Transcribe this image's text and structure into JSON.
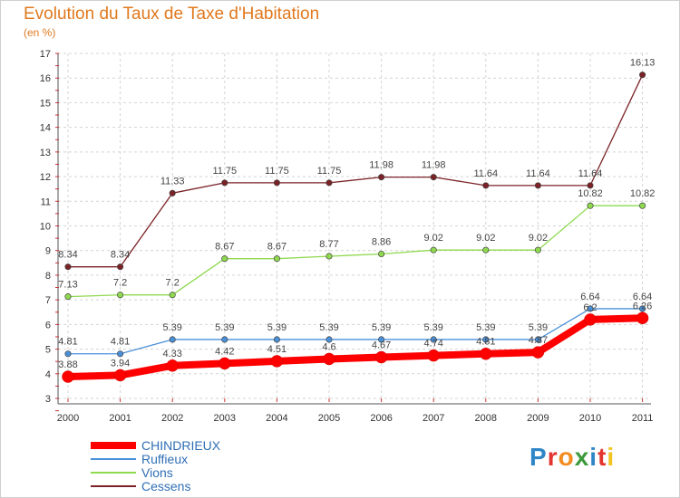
{
  "title": "Evolution du Taux de Taxe d'Habitation",
  "subtitle": "(en %)",
  "logo": {
    "letters": [
      "P",
      "r",
      "o",
      "x",
      "i",
      "t",
      "i"
    ],
    "colors": [
      "#2f86c7",
      "#e3342f",
      "#f28c1e",
      "#3c9a3c",
      "#2f86c7",
      "#e3342f",
      "#f2c21e"
    ]
  },
  "chart_data": {
    "type": "line",
    "x": [
      "2000",
      "2001",
      "2002",
      "2003",
      "2004",
      "2005",
      "2006",
      "2007",
      "2008",
      "2009",
      "2010",
      "2011"
    ],
    "ylim": [
      3,
      17
    ],
    "yticks": [
      "3",
      "4",
      "5",
      "6",
      "7",
      "8",
      "9",
      "10",
      "11",
      "12",
      "13",
      "14",
      "15",
      "16",
      "17"
    ],
    "grid": true,
    "legend_position": "bottom-left",
    "series": [
      {
        "name": "Cessens",
        "color": "#7a2226",
        "values": [
          8.34,
          8.34,
          11.33,
          11.75,
          11.75,
          11.75,
          11.98,
          11.98,
          11.64,
          11.64,
          11.64,
          16.13
        ],
        "labels": [
          "8.34",
          "8.34",
          "11.33",
          "11.75",
          "11.75",
          "11.75",
          "11.98",
          "11.98",
          "11.64",
          "11.64",
          "11.64",
          "16.13"
        ]
      },
      {
        "name": "Vions",
        "color": "#8fd94f",
        "values": [
          7.13,
          7.2,
          7.2,
          8.67,
          8.67,
          8.77,
          8.86,
          9.02,
          9.02,
          9.02,
          10.82,
          10.82
        ],
        "labels": [
          "7.13",
          "7.2",
          "7.2",
          "8.67",
          "8.67",
          "8.77",
          "8.86",
          "9.02",
          "9.02",
          "9.02",
          "10.82",
          "10.82"
        ]
      },
      {
        "name": "Ruffieux",
        "color": "#4a90d9",
        "values": [
          4.81,
          4.81,
          5.39,
          5.39,
          5.39,
          5.39,
          5.39,
          5.39,
          5.39,
          5.39,
          6.64,
          6.64
        ],
        "labels": [
          "4.81",
          "4.81",
          "5.39",
          "5.39",
          "5.39",
          "5.39",
          "5.39",
          "5.39",
          "5.39",
          "5.39",
          "6.64",
          "6.64"
        ]
      },
      {
        "name": "CHINDRIEUX",
        "color": "#ff0000",
        "values": [
          3.88,
          3.94,
          4.33,
          4.42,
          4.51,
          4.6,
          4.67,
          4.74,
          4.81,
          4.87,
          6.2,
          6.26
        ],
        "labels": [
          "3.88",
          "3.94",
          "4.33",
          "4.42",
          "4.51",
          "4.6",
          "4.67",
          "4.74",
          "4.81",
          "4.87",
          "6.2",
          "6.26"
        ]
      }
    ],
    "legend": [
      "CHINDRIEUX",
      "Ruffieux",
      "Vions",
      "Cessens"
    ]
  }
}
